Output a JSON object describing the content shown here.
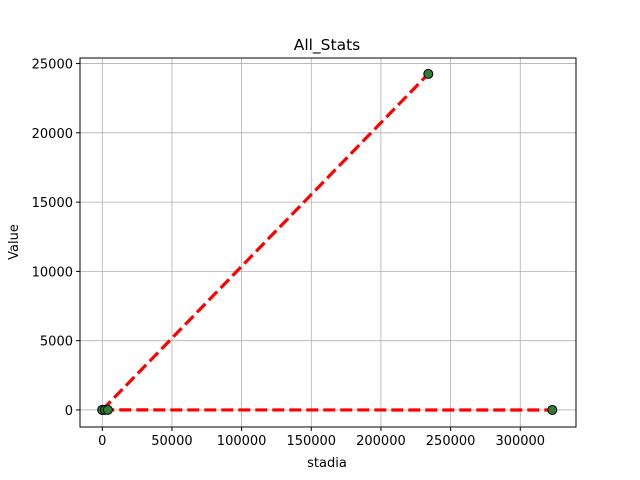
{
  "chart_data": {
    "type": "line",
    "title": "All_Stats",
    "xlabel": "stadia",
    "ylabel": "Value",
    "xlim": [
      -16000,
      340000
    ],
    "ylim": [
      -1230,
      25400
    ],
    "xticks": [
      0,
      50000,
      100000,
      150000,
      200000,
      250000,
      300000
    ],
    "yticks": [
      0,
      5000,
      10000,
      15000,
      20000,
      25000
    ],
    "grid": true,
    "series": [
      {
        "x": [
          0,
          234000
        ],
        "y": [
          0,
          24250
        ],
        "line_color": "#ff0000",
        "line_style": "dashed",
        "marker_color": "#2e7d32"
      },
      {
        "x": [
          0,
          2000,
          4000,
          323000
        ],
        "y": [
          0,
          10,
          5,
          0
        ],
        "line_color": "#ff0000",
        "line_style": "dashed",
        "marker_color": "#2e7d32"
      }
    ]
  }
}
